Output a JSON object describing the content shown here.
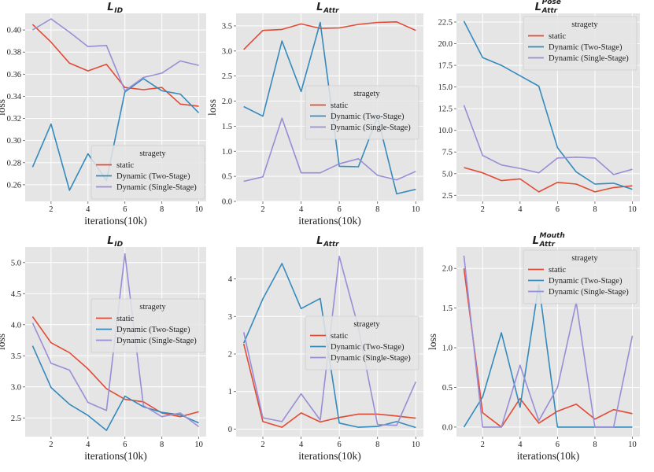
{
  "figure": {
    "colors": {
      "static": "#e24a33",
      "two": "#348abd",
      "single": "#988ed5",
      "panel_bg": "#e5e5e5",
      "grid": "#ffffff"
    }
  },
  "chart_data": [
    {
      "type": "line",
      "title_main": "L",
      "title_sub": "ID",
      "title_sup": "",
      "xlabel": "iterations(10k)",
      "ylabel": "loss",
      "xlim": [
        0.6,
        10.4
      ],
      "ylim": [
        0.245,
        0.415
      ],
      "xticks": [
        2,
        4,
        6,
        8,
        10
      ],
      "yticks": [
        0.26,
        0.28,
        0.3,
        0.32,
        0.34,
        0.36,
        0.38,
        0.4
      ],
      "ytick_labels": [
        "0.26",
        "0.28",
        "0.30",
        "0.32",
        "0.34",
        "0.36",
        "0.38",
        "0.40"
      ],
      "x": [
        1,
        2,
        3,
        4,
        5,
        6,
        7,
        8,
        9,
        10
      ],
      "series": [
        {
          "name": "static",
          "values": [
            0.405,
            0.389,
            0.37,
            0.363,
            0.369,
            0.348,
            0.346,
            0.348,
            0.333,
            0.331
          ]
        },
        {
          "name": "Dynamic (Two-Stage)",
          "values": [
            0.276,
            0.315,
            0.255,
            0.288,
            0.264,
            0.344,
            0.356,
            0.345,
            0.342,
            0.325
          ]
        },
        {
          "name": "Dynamic (Single-Stage)",
          "values": [
            0.4,
            0.41,
            0.398,
            0.385,
            0.386,
            0.345,
            0.357,
            0.361,
            0.372,
            0.368
          ]
        }
      ],
      "legend": {
        "title": "stragety",
        "placement": "lower-right"
      }
    },
    {
      "type": "line",
      "title_main": "L",
      "title_sub": "Attr",
      "title_sup": "",
      "xlabel": "iterations(10k)",
      "ylabel": "loss",
      "xlim": [
        0.6,
        10.4
      ],
      "ylim": [
        0.0,
        3.75
      ],
      "xticks": [
        2,
        4,
        6,
        8,
        10
      ],
      "yticks": [
        0.0,
        0.5,
        1.0,
        1.5,
        2.0,
        2.5,
        3.0,
        3.5
      ],
      "ytick_labels": [
        "0.0",
        "0.5",
        "1.0",
        "1.5",
        "2.0",
        "2.5",
        "3.0",
        "3.5"
      ],
      "x": [
        1,
        2,
        3,
        4,
        5,
        6,
        7,
        8,
        9,
        10
      ],
      "series": [
        {
          "name": "static",
          "values": [
            3.03,
            3.41,
            3.43,
            3.54,
            3.45,
            3.46,
            3.53,
            3.57,
            3.58,
            3.41
          ]
        },
        {
          "name": "Dynamic (Two-Stage)",
          "values": [
            1.89,
            1.7,
            3.2,
            2.19,
            3.57,
            0.7,
            0.69,
            1.69,
            0.15,
            0.24
          ]
        },
        {
          "name": "Dynamic (Single-Stage)",
          "values": [
            0.4,
            0.49,
            1.66,
            0.57,
            0.57,
            0.75,
            0.85,
            0.52,
            0.43,
            0.6
          ]
        }
      ],
      "legend": {
        "title": "stragety",
        "placement": "center-right"
      }
    },
    {
      "type": "line",
      "title_main": "L",
      "title_sub": "Attr",
      "title_sup": "Pose",
      "xlabel": "",
      "ylabel": "",
      "xlim": [
        0.6,
        10.4
      ],
      "ylim": [
        1.8,
        23.5
      ],
      "xticks": [
        2,
        4,
        6,
        8,
        10
      ],
      "yticks": [
        2.5,
        5.0,
        7.5,
        10.0,
        12.5,
        15.0,
        17.5,
        20.0,
        22.5
      ],
      "ytick_labels": [
        "2.5",
        "5.0",
        "7.5",
        "10.0",
        "12.5",
        "15.0",
        "17.5",
        "20.0",
        "22.5"
      ],
      "x": [
        1,
        2,
        3,
        4,
        5,
        6,
        7,
        8,
        9,
        10
      ],
      "series": [
        {
          "name": "static",
          "values": [
            5.7,
            5.1,
            4.2,
            4.4,
            2.9,
            4.0,
            3.8,
            2.9,
            3.4,
            3.6
          ]
        },
        {
          "name": "Dynamic (Two-Stage)",
          "values": [
            22.6,
            18.4,
            17.5,
            16.3,
            15.1,
            8.0,
            5.2,
            3.8,
            3.9,
            3.2
          ]
        },
        {
          "name": "Dynamic (Single-Stage)",
          "values": [
            12.9,
            7.1,
            6.0,
            5.6,
            5.1,
            6.8,
            6.9,
            6.8,
            4.9,
            5.5
          ]
        }
      ],
      "legend": {
        "title": "stragety",
        "placement": "top-right"
      }
    },
    {
      "type": "line",
      "title_main": "L",
      "title_sub": "ID",
      "title_sup": "",
      "xlabel": "iterations(10k)",
      "ylabel": "loss",
      "xlim": [
        0.6,
        10.4
      ],
      "ylim": [
        2.2,
        5.25
      ],
      "xticks": [
        2,
        4,
        6,
        8,
        10
      ],
      "yticks": [
        2.5,
        3.0,
        3.5,
        4.0,
        4.5,
        5.0
      ],
      "ytick_labels": [
        "2.5",
        "3.0",
        "3.5",
        "4.0",
        "4.5",
        "5.0"
      ],
      "x": [
        1,
        2,
        3,
        4,
        5,
        6,
        7,
        8,
        9,
        10
      ],
      "series": [
        {
          "name": "static",
          "values": [
            4.13,
            3.71,
            3.55,
            3.29,
            2.97,
            2.8,
            2.76,
            2.58,
            2.52,
            2.6
          ]
        },
        {
          "name": "Dynamic (Two-Stage)",
          "values": [
            3.66,
            2.99,
            2.72,
            2.54,
            2.3,
            2.85,
            2.68,
            2.59,
            2.55,
            2.42
          ]
        },
        {
          "name": "Dynamic (Single-Stage)",
          "values": [
            4.03,
            3.38,
            3.27,
            2.75,
            2.62,
            5.14,
            2.7,
            2.52,
            2.58,
            2.36
          ]
        }
      ],
      "legend": {
        "title": "stragety",
        "placement": "center-right"
      }
    },
    {
      "type": "line",
      "title_main": "L",
      "title_sub": "Attr",
      "title_sup": "",
      "xlabel": "iterations(10k)",
      "ylabel": "",
      "xlim": [
        0.6,
        10.4
      ],
      "ylim": [
        -0.2,
        4.85
      ],
      "xticks": [
        2,
        4,
        6,
        8,
        10
      ],
      "yticks": [
        0,
        1,
        2,
        3,
        4
      ],
      "ytick_labels": [
        "0",
        "1",
        "2",
        "3",
        "4"
      ],
      "x": [
        1,
        2,
        3,
        4,
        5,
        6,
        7,
        8,
        9,
        10
      ],
      "series": [
        {
          "name": "static",
          "values": [
            2.27,
            0.2,
            0.05,
            0.43,
            0.19,
            0.31,
            0.4,
            0.4,
            0.35,
            0.29
          ]
        },
        {
          "name": "Dynamic (Two-Stage)",
          "values": [
            2.29,
            3.47,
            4.41,
            3.21,
            3.48,
            0.16,
            0.05,
            0.07,
            0.2,
            0.04
          ]
        },
        {
          "name": "Dynamic (Single-Stage)",
          "values": [
            2.58,
            0.3,
            0.2,
            0.94,
            0.24,
            4.6,
            2.7,
            0.12,
            0.1,
            1.26
          ]
        }
      ],
      "legend": {
        "title": "stragety",
        "placement": "center-right"
      }
    },
    {
      "type": "line",
      "title_main": "L",
      "title_sub": "Attr",
      "title_sup": "Mouth",
      "xlabel": "iterations(10k)",
      "ylabel": "loss",
      "xlim": [
        0.6,
        10.4
      ],
      "ylim": [
        -0.12,
        2.27
      ],
      "xticks": [
        2,
        4,
        6,
        8,
        10
      ],
      "yticks": [
        0.0,
        0.5,
        1.0,
        1.5,
        2.0
      ],
      "ytick_labels": [
        "0.0",
        "0.5",
        "1.0",
        "1.5",
        "2.0"
      ],
      "x": [
        1,
        2,
        3,
        4,
        5,
        6,
        7,
        8,
        9,
        10
      ],
      "series": [
        {
          "name": "static",
          "values": [
            2.0,
            0.18,
            0.0,
            0.36,
            0.05,
            0.2,
            0.29,
            0.1,
            0.22,
            0.17
          ]
        },
        {
          "name": "Dynamic (Two-Stage)",
          "values": [
            0.0,
            0.38,
            1.19,
            0.25,
            1.8,
            0.0,
            0.0,
            0.0,
            0.0,
            0.0
          ]
        },
        {
          "name": "Dynamic (Single-Stage)",
          "values": [
            2.16,
            0.0,
            0.0,
            0.78,
            0.08,
            0.5,
            1.57,
            0.0,
            0.0,
            1.15
          ]
        }
      ],
      "legend": {
        "title": "stragety",
        "placement": "top-right"
      }
    }
  ]
}
